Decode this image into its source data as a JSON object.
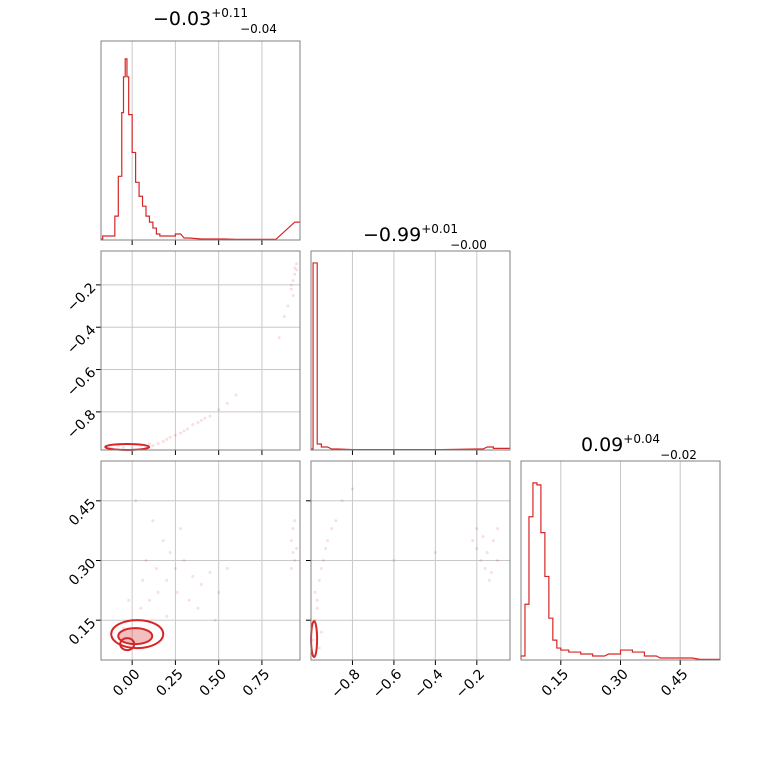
{
  "chart_data": [
    {
      "type": "histogram",
      "panel": "p00",
      "title_main": "−0.03",
      "title_plus": "+0.11",
      "title_minus": "−0.04",
      "xlim": [
        -0.18,
        0.97
      ],
      "bins": [
        {
          "x": -0.17,
          "h": 0.02
        },
        {
          "x": -0.12,
          "h": 0.02
        },
        {
          "x": -0.1,
          "h": 0.12
        },
        {
          "x": -0.08,
          "h": 0.32
        },
        {
          "x": -0.06,
          "h": 0.64
        },
        {
          "x": -0.05,
          "h": 0.82
        },
        {
          "x": -0.04,
          "h": 0.91
        },
        {
          "x": -0.03,
          "h": 0.82
        },
        {
          "x": -0.02,
          "h": 0.63
        },
        {
          "x": 0.0,
          "h": 0.44
        },
        {
          "x": 0.02,
          "h": 0.29
        },
        {
          "x": 0.04,
          "h": 0.22
        },
        {
          "x": 0.06,
          "h": 0.17
        },
        {
          "x": 0.08,
          "h": 0.12
        },
        {
          "x": 0.1,
          "h": 0.09
        },
        {
          "x": 0.12,
          "h": 0.06
        },
        {
          "x": 0.14,
          "h": 0.03
        },
        {
          "x": 0.16,
          "h": 0.02
        },
        {
          "x": 0.22,
          "h": 0.02
        },
        {
          "x": 0.25,
          "h": 0.03
        },
        {
          "x": 0.3,
          "h": 0.01
        },
        {
          "x": 0.4,
          "h": 0.005
        },
        {
          "x": 0.5,
          "h": 0.005
        },
        {
          "x": 0.6,
          "h": 0.003
        },
        {
          "x": 0.8,
          "h": 0.003
        },
        {
          "x": 0.94,
          "h": 0.09
        }
      ]
    },
    {
      "type": "scatter",
      "panel": "p10",
      "xlim": [
        -0.18,
        0.97
      ],
      "ylim": [
        -0.98,
        -0.04
      ],
      "yticks": [
        -0.2,
        -0.4,
        -0.6,
        -0.8
      ],
      "ytick_labels": [
        "−0.2",
        "−0.4",
        "−0.6",
        "−0.8"
      ],
      "points": [
        [
          -0.12,
          -0.97
        ],
        [
          -0.08,
          -0.96
        ],
        [
          -0.05,
          -0.97
        ],
        [
          0.0,
          -0.97
        ],
        [
          0.05,
          -0.96
        ],
        [
          0.1,
          -0.95
        ],
        [
          0.15,
          -0.95
        ],
        [
          0.2,
          -0.93
        ],
        [
          0.25,
          -0.91
        ],
        [
          0.3,
          -0.89
        ],
        [
          0.35,
          -0.86
        ],
        [
          0.4,
          -0.84
        ],
        [
          0.45,
          -0.82
        ],
        [
          0.5,
          -0.79
        ],
        [
          0.55,
          -0.76
        ],
        [
          0.6,
          -0.72
        ],
        [
          0.18,
          -0.94
        ],
        [
          0.22,
          -0.92
        ],
        [
          0.28,
          -0.9
        ],
        [
          0.32,
          -0.88
        ],
        [
          0.12,
          -0.96
        ],
        [
          0.08,
          -0.97
        ],
        [
          0.92,
          -0.22
        ],
        [
          0.93,
          -0.18
        ],
        [
          0.94,
          -0.15
        ],
        [
          0.95,
          -0.13
        ],
        [
          0.93,
          -0.25
        ],
        [
          0.92,
          -0.2
        ],
        [
          0.95,
          -0.1
        ],
        [
          0.94,
          -0.12
        ],
        [
          0.9,
          -0.3
        ],
        [
          0.88,
          -0.35
        ],
        [
          0.85,
          -0.45
        ],
        [
          0.42,
          -0.83
        ],
        [
          0.38,
          -0.85
        ]
      ],
      "contour_center": [
        -0.04,
        -0.975
      ]
    },
    {
      "type": "histogram",
      "panel": "p11",
      "title_main": "−0.99",
      "title_plus": "+0.01",
      "title_minus": "−0.00",
      "xlim": [
        -1.0,
        -0.04
      ],
      "bins": [
        {
          "x": -0.99,
          "h": 0.94
        },
        {
          "x": -0.97,
          "h": 0.03
        },
        {
          "x": -0.95,
          "h": 0.015
        },
        {
          "x": -0.9,
          "h": 0.005
        },
        {
          "x": -0.8,
          "h": 0.002
        },
        {
          "x": -0.6,
          "h": 0.002
        },
        {
          "x": -0.4,
          "h": 0.002
        },
        {
          "x": -0.2,
          "h": 0.005
        },
        {
          "x": -0.15,
          "h": 0.015
        },
        {
          "x": -0.12,
          "h": 0.008
        }
      ]
    },
    {
      "type": "scatter",
      "panel": "p20",
      "xlim": [
        -0.18,
        0.97
      ],
      "ylim": [
        0.05,
        0.55
      ],
      "yticks": [
        0.15,
        0.3,
        0.45
      ],
      "ytick_labels": [
        "0.15",
        "0.30",
        "0.45"
      ],
      "points": [
        [
          -0.1,
          0.1
        ],
        [
          -0.05,
          0.13
        ],
        [
          0.0,
          0.15
        ],
        [
          0.05,
          0.18
        ],
        [
          0.1,
          0.2
        ],
        [
          0.15,
          0.22
        ],
        [
          0.2,
          0.25
        ],
        [
          0.25,
          0.28
        ],
        [
          0.3,
          0.3
        ],
        [
          0.35,
          0.26
        ],
        [
          0.4,
          0.24
        ],
        [
          0.45,
          0.27
        ],
        [
          0.5,
          0.22
        ],
        [
          0.55,
          0.28
        ],
        [
          0.02,
          0.45
        ],
        [
          0.12,
          0.4
        ],
        [
          0.18,
          0.35
        ],
        [
          0.22,
          0.32
        ],
        [
          0.08,
          0.3
        ],
        [
          0.28,
          0.38
        ],
        [
          0.33,
          0.2
        ],
        [
          0.06,
          0.25
        ],
        [
          -0.02,
          0.2
        ],
        [
          0.14,
          0.28
        ],
        [
          0.26,
          0.22
        ],
        [
          0.92,
          0.35
        ],
        [
          0.93,
          0.32
        ],
        [
          0.94,
          0.3
        ],
        [
          0.95,
          0.33
        ],
        [
          0.93,
          0.38
        ],
        [
          0.94,
          0.4
        ],
        [
          0.92,
          0.28
        ],
        [
          0.2,
          0.16
        ],
        [
          0.38,
          0.18
        ],
        [
          0.48,
          0.15
        ]
      ],
      "contour_center": [
        -0.04,
        0.09
      ]
    },
    {
      "type": "scatter",
      "panel": "p21",
      "xlim": [
        -1.0,
        -0.04
      ],
      "ylim": [
        0.05,
        0.55
      ],
      "points": [
        [
          -0.99,
          0.1
        ],
        [
          -0.98,
          0.15
        ],
        [
          -0.97,
          0.2
        ],
        [
          -0.96,
          0.25
        ],
        [
          -0.95,
          0.28
        ],
        [
          -0.94,
          0.3
        ],
        [
          -0.93,
          0.33
        ],
        [
          -0.92,
          0.35
        ],
        [
          -0.98,
          0.22
        ],
        [
          -0.97,
          0.18
        ],
        [
          -0.9,
          0.38
        ],
        [
          -0.88,
          0.4
        ],
        [
          -0.85,
          0.45
        ],
        [
          -0.8,
          0.48
        ],
        [
          -0.95,
          0.12
        ],
        [
          -0.96,
          0.08
        ],
        [
          -0.2,
          0.33
        ],
        [
          -0.18,
          0.3
        ],
        [
          -0.15,
          0.32
        ],
        [
          -0.12,
          0.35
        ],
        [
          -0.1,
          0.38
        ],
        [
          -0.2,
          0.38
        ],
        [
          -0.16,
          0.28
        ],
        [
          -0.13,
          0.27
        ],
        [
          -0.22,
          0.35
        ],
        [
          -0.1,
          0.3
        ],
        [
          -0.17,
          0.36
        ],
        [
          -0.14,
          0.25
        ],
        [
          -0.6,
          0.3
        ],
        [
          -0.4,
          0.32
        ]
      ],
      "contour_center": [
        -0.99,
        0.09
      ]
    },
    {
      "type": "histogram",
      "panel": "p22",
      "title_main": "0.09",
      "title_plus": "+0.04",
      "title_minus": "−0.02",
      "xlim": [
        0.05,
        0.55
      ],
      "bins": [
        {
          "x": 0.05,
          "h": 0.02
        },
        {
          "x": 0.06,
          "h": 0.28
        },
        {
          "x": 0.07,
          "h": 0.72
        },
        {
          "x": 0.08,
          "h": 0.89
        },
        {
          "x": 0.09,
          "h": 0.88
        },
        {
          "x": 0.1,
          "h": 0.64
        },
        {
          "x": 0.11,
          "h": 0.42
        },
        {
          "x": 0.12,
          "h": 0.21
        },
        {
          "x": 0.13,
          "h": 0.1
        },
        {
          "x": 0.14,
          "h": 0.06
        },
        {
          "x": 0.15,
          "h": 0.05
        },
        {
          "x": 0.17,
          "h": 0.04
        },
        {
          "x": 0.2,
          "h": 0.03
        },
        {
          "x": 0.23,
          "h": 0.02
        },
        {
          "x": 0.27,
          "h": 0.03
        },
        {
          "x": 0.3,
          "h": 0.05
        },
        {
          "x": 0.33,
          "h": 0.04
        },
        {
          "x": 0.36,
          "h": 0.02
        },
        {
          "x": 0.4,
          "h": 0.01
        },
        {
          "x": 0.45,
          "h": 0.01
        },
        {
          "x": 0.5,
          "h": 0.003
        }
      ]
    }
  ],
  "axes": {
    "x0_ticks": [
      0.0,
      0.25,
      0.5,
      0.75
    ],
    "x0_tick_labels": [
      "0.00",
      "0.25",
      "0.50",
      "0.75"
    ],
    "x1_ticks": [
      -0.8,
      -0.6,
      -0.4,
      -0.2
    ],
    "x1_tick_labels": [
      "−0.8",
      "−0.6",
      "−0.4",
      "−0.2"
    ],
    "x2_ticks": [
      0.15,
      0.3,
      0.45
    ],
    "x2_tick_labels": [
      "0.15",
      "0.30",
      "0.45"
    ]
  },
  "colors": {
    "series": "#d62728",
    "grid": "#c8c8c8",
    "frame": "#808080"
  }
}
